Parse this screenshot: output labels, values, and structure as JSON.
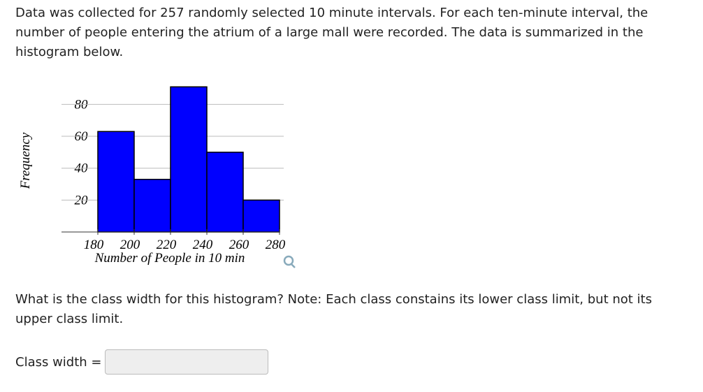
{
  "question": {
    "intro": "Data was collected for 257 randomly selected 10 minute intervals. For each ten-minute interval, the number of people entering the atrium of a large mall were recorded. The data is summarized in the histogram below.",
    "prompt": "What is the class width for this histogram? Note: Each class constains its lower class limit, but not its upper class limit.",
    "answer_label": "Class width ="
  },
  "chart_data": {
    "type": "histogram",
    "x_label": "Number of People in 10 min",
    "y_label": "Frequency",
    "bins": [
      180,
      200,
      220,
      240,
      260,
      280
    ],
    "values": [
      63,
      33,
      91,
      50,
      20
    ],
    "color": "#0000ff",
    "xlim": [
      160,
      280
    ],
    "ylim": [
      0,
      92
    ],
    "xticks": [
      180,
      200,
      220,
      240,
      260,
      280
    ],
    "yticks": [
      20,
      40,
      60,
      80
    ],
    "grid": true
  }
}
